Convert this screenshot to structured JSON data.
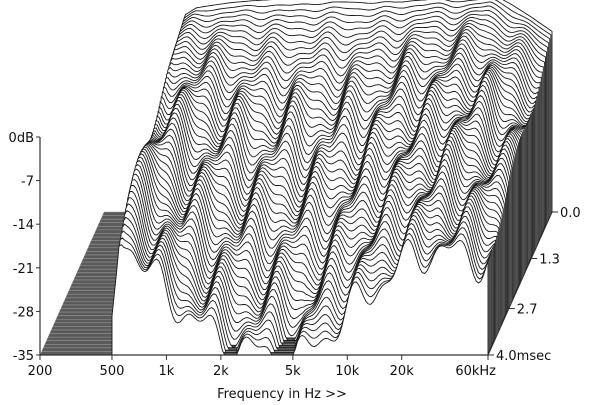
{
  "chart_data": {
    "type": "waterfall",
    "xlabel": "Frequency in Hz >>",
    "x_scale": "log",
    "x_ticks": [
      {
        "value": 200,
        "label": "200"
      },
      {
        "value": 500,
        "label": "500"
      },
      {
        "value": 1000,
        "label": "1k"
      },
      {
        "value": 2000,
        "label": "2k"
      },
      {
        "value": 5000,
        "label": "5k"
      },
      {
        "value": 10000,
        "label": "10k"
      },
      {
        "value": 20000,
        "label": "20k"
      },
      {
        "value": 60000,
        "label": "60kHz"
      }
    ],
    "xlim": [
      200,
      60000
    ],
    "y_ticks": [
      {
        "value": 0,
        "label": "0dB"
      },
      {
        "value": -7,
        "label": "-7"
      },
      {
        "value": -14,
        "label": "-14"
      },
      {
        "value": -21,
        "label": "-21"
      },
      {
        "value": -28,
        "label": "-28"
      },
      {
        "value": -35,
        "label": "-35"
      }
    ],
    "ylim": [
      -35,
      0
    ],
    "z_ticks": [
      {
        "value": 0.0,
        "label": "0.0"
      },
      {
        "value": 1.3,
        "label": "1.3"
      },
      {
        "value": 2.7,
        "label": "2.7"
      },
      {
        "value": 4.0,
        "label": "4.0msec"
      }
    ],
    "zlim": [
      0,
      4.0
    ],
    "slice_count": 60,
    "initial_response": {
      "freq_hz": [
        500,
        550,
        650,
        800,
        1000,
        1300,
        1700,
        2200,
        2800,
        3500,
        4500,
        6000,
        8000,
        10000,
        13000,
        17000,
        22000,
        28000,
        35000,
        45000,
        60000
      ],
      "db": [
        -20.5,
        -3.5,
        -2.2,
        -1.8,
        -1.4,
        -1.1,
        -0.9,
        -0.9,
        -0.6,
        -0.5,
        -0.3,
        -0.4,
        -0.5,
        -0.2,
        0.0,
        -0.4,
        -0.3,
        0.0,
        -1.5,
        -3.5,
        -6.0
      ]
    },
    "decay_db_per_ms": [
      {
        "freq_hz": 500,
        "rate": 2.5
      },
      {
        "freq_hz": 1000,
        "rate": 6.0
      },
      {
        "freq_hz": 2000,
        "rate": 8.0
      },
      {
        "freq_hz": 5000,
        "rate": 9.0
      },
      {
        "freq_hz": 10000,
        "rate": 7.0
      },
      {
        "freq_hz": 20000,
        "rate": 5.0
      },
      {
        "freq_hz": 60000,
        "rate": 3.5
      }
    ]
  }
}
